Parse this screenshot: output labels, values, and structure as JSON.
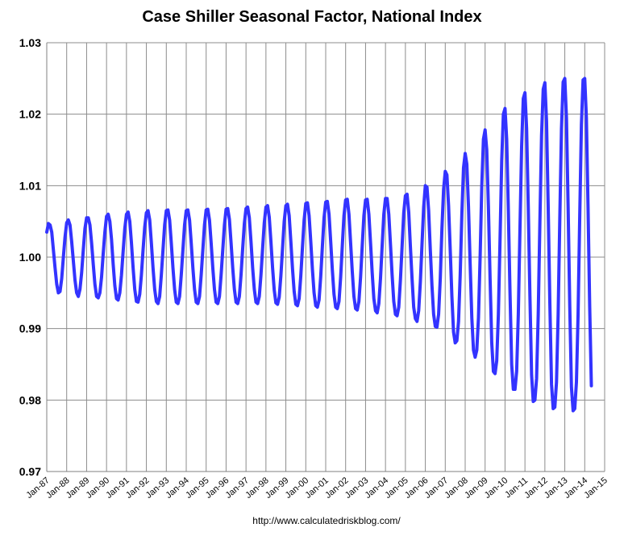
{
  "chart_data": {
    "type": "line",
    "title": "Case Shiller Seasonal Factor, National Index",
    "source": "http://www.calculatedriskblog.com/",
    "xlabel": "",
    "ylabel": "",
    "ylim": [
      0.97,
      1.03
    ],
    "yticks": [
      "0.97",
      "0.98",
      "0.99",
      "1.00",
      "1.01",
      "1.02",
      "1.03"
    ],
    "xticks": [
      "Jan-87",
      "Jan-88",
      "Jan-89",
      "Jan-90",
      "Jan-91",
      "Jan-92",
      "Jan-93",
      "Jan-94",
      "Jan-95",
      "Jan-96",
      "Jan-97",
      "Jan-98",
      "Jan-99",
      "Jan-00",
      "Jan-01",
      "Jan-02",
      "Jan-03",
      "Jan-04",
      "Jan-05",
      "Jan-06",
      "Jan-07",
      "Jan-08",
      "Jan-09",
      "Jan-10",
      "Jan-11",
      "Jan-12",
      "Jan-13",
      "Jan-14",
      "Jan-15"
    ],
    "grid": "horizontal and vertical",
    "legend": "none",
    "series_color": "#3333ff",
    "series": [
      {
        "values": [
          1.0035,
          1.0047,
          1.0045,
          1.0035,
          1.001,
          0.9985,
          0.9962,
          0.995,
          0.9952,
          0.997,
          1.0,
          1.0028,
          1.0048,
          1.0052,
          1.0045,
          1.0022,
          0.9995,
          0.9968,
          0.995,
          0.9945,
          0.9955,
          0.9978,
          1.001,
          1.004,
          1.0055,
          1.0055,
          1.0045,
          1.002,
          0.999,
          0.9962,
          0.9945,
          0.9943,
          0.995,
          0.9972,
          1.0005,
          1.0035,
          1.0057,
          1.006,
          1.005,
          1.0025,
          0.999,
          0.996,
          0.9942,
          0.994,
          0.995,
          0.9975,
          1.0008,
          1.004,
          1.006,
          1.0063,
          1.005,
          1.002,
          0.9985,
          0.9955,
          0.9938,
          0.9937,
          0.9948,
          0.9975,
          1.001,
          1.0042,
          1.0062,
          1.0065,
          1.0052,
          1.002,
          0.9985,
          0.9955,
          0.9938,
          0.9935,
          0.9945,
          0.9975,
          1.001,
          1.0045,
          1.0065,
          1.0066,
          1.0052,
          1.002,
          0.9985,
          0.9955,
          0.9937,
          0.9935,
          0.9945,
          0.9975,
          1.001,
          1.0045,
          1.0065,
          1.0066,
          1.0052,
          1.002,
          0.9985,
          0.9955,
          0.9937,
          0.9935,
          0.9945,
          0.9975,
          1.001,
          1.0045,
          1.0066,
          1.0067,
          1.0052,
          1.002,
          0.9985,
          0.9955,
          0.9937,
          0.9935,
          0.9945,
          0.9975,
          1.001,
          1.0045,
          1.0067,
          1.0068,
          1.0053,
          1.002,
          0.9985,
          0.9955,
          0.9937,
          0.9935,
          0.9945,
          0.9975,
          1.0012,
          1.0047,
          1.0068,
          1.007,
          1.0055,
          1.0022,
          0.9985,
          0.9955,
          0.9937,
          0.9935,
          0.9945,
          0.9975,
          1.0012,
          1.0048,
          1.007,
          1.0072,
          1.0056,
          1.0022,
          0.9985,
          0.9954,
          0.9936,
          0.9934,
          0.9944,
          0.9974,
          1.0012,
          1.005,
          1.0072,
          1.0074,
          1.0058,
          1.0022,
          0.9984,
          0.9952,
          0.9934,
          0.9932,
          0.9942,
          0.9974,
          1.0014,
          1.0052,
          1.0075,
          1.0076,
          1.0058,
          1.0022,
          0.9983,
          0.995,
          0.9932,
          0.993,
          0.994,
          0.9973,
          1.0015,
          1.0055,
          1.0077,
          1.0078,
          1.006,
          1.0022,
          0.9982,
          0.9948,
          0.993,
          0.9928,
          0.9938,
          0.9972,
          1.0016,
          1.0058,
          1.008,
          1.0081,
          1.006,
          1.002,
          0.998,
          0.9945,
          0.9928,
          0.9926,
          0.9938,
          0.9972,
          1.0016,
          1.0058,
          1.008,
          1.0081,
          1.006,
          1.002,
          0.9978,
          0.9942,
          0.9925,
          0.9922,
          0.9935,
          0.997,
          1.0016,
          1.006,
          1.0082,
          1.0082,
          1.006,
          1.0018,
          0.9975,
          0.9938,
          0.992,
          0.9918,
          0.993,
          0.9968,
          1.0015,
          1.0062,
          1.0086,
          1.0088,
          1.0063,
          1.0015,
          0.997,
          0.993,
          0.9914,
          0.991,
          0.9925,
          0.9965,
          1.0018,
          1.007,
          1.01,
          1.0098,
          1.0065,
          1.001,
          0.996,
          0.992,
          0.9903,
          0.9902,
          0.992,
          0.997,
          1.004,
          1.0095,
          1.012,
          1.0115,
          1.0072,
          1.001,
          0.9945,
          0.9895,
          0.988,
          0.9883,
          0.991,
          0.9975,
          1.006,
          1.0125,
          1.0145,
          1.013,
          1.007,
          0.999,
          0.9915,
          0.987,
          0.986,
          0.987,
          0.9915,
          1.0,
          1.01,
          1.0165,
          1.0178,
          1.015,
          1.007,
          0.997,
          0.988,
          0.984,
          0.9837,
          0.9855,
          0.992,
          1.0025,
          1.0135,
          1.02,
          1.0208,
          1.0165,
          1.0065,
          0.995,
          0.985,
          0.9815,
          0.9815,
          0.984,
          0.992,
          1.004,
          1.0155,
          1.0222,
          1.023,
          1.018,
          1.007,
          0.9945,
          0.9835,
          0.9798,
          0.98,
          0.983,
          0.992,
          1.005,
          1.017,
          1.0235,
          1.0244,
          1.019,
          1.007,
          0.9935,
          0.9822,
          0.9788,
          0.979,
          0.9825,
          0.992,
          1.0055,
          1.018,
          1.0245,
          1.025,
          1.0195,
          1.007,
          0.993,
          0.9818,
          0.9785,
          0.9788,
          0.9825,
          0.992,
          1.0058,
          1.0185,
          1.0248,
          1.025,
          1.0195,
          1.007,
          0.993,
          0.982
        ]
      }
    ],
    "x_start": "Jan-87",
    "x_step": "1 month"
  }
}
